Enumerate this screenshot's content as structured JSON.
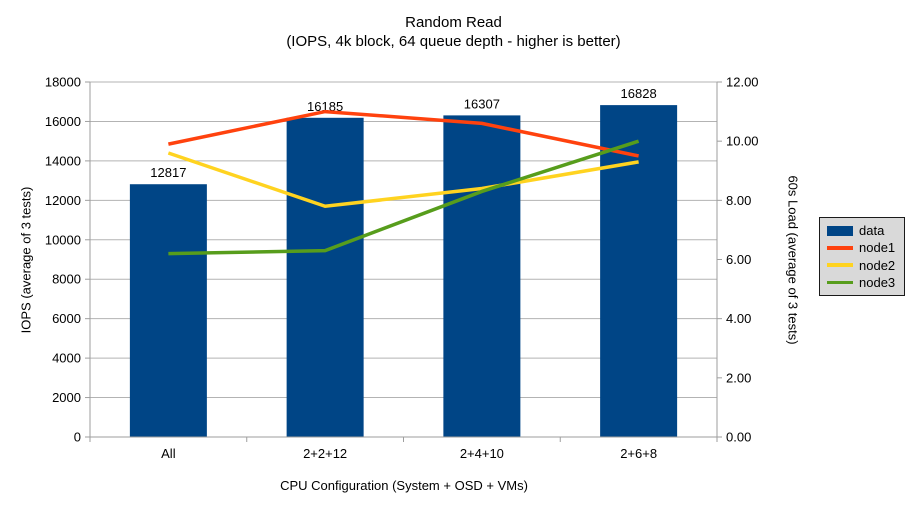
{
  "chart_data": {
    "type": "bar+line",
    "title": "Random Read",
    "subtitle": "(IOPS, 4k block, 64 queue depth - higher is better)",
    "categories": [
      "All",
      "2+2+12",
      "2+4+10",
      "2+6+8"
    ],
    "series": [
      {
        "name": "data",
        "type": "bar",
        "axis": "left",
        "color": "#004586",
        "values": [
          12817,
          16185,
          16307,
          16828
        ],
        "labels": [
          "12817",
          "16185",
          "16307",
          "16828"
        ]
      },
      {
        "name": "node1",
        "type": "line",
        "axis": "right",
        "color": "#FF420E",
        "values": [
          9.9,
          11.0,
          10.6,
          9.5
        ]
      },
      {
        "name": "node2",
        "type": "line",
        "axis": "right",
        "color": "#FFD320",
        "values": [
          9.6,
          7.8,
          8.4,
          9.3
        ]
      },
      {
        "name": "node3",
        "type": "line",
        "axis": "right",
        "color": "#579D1C",
        "values": [
          6.2,
          6.3,
          8.3,
          10.0
        ]
      }
    ],
    "xlabel": "CPU Configuration (System + OSD + VMs)",
    "ylabel_left": "IOPS (average of 3 tests)",
    "ylabel_right": "60s Load (average of 3 tests)",
    "ylim_left": [
      0,
      18000
    ],
    "ytick_step_left": 2000,
    "ylim_right": [
      0,
      12
    ],
    "ytick_step_right": 2,
    "right_tick_decimals": 2,
    "grid": true,
    "bar_value_labels": true,
    "legend_position": "right"
  },
  "colors": {
    "background": "#FFFFFF",
    "grid": "#B3B3B3",
    "axis": "#9E9E9E",
    "text": "#000000",
    "legend_bg": "#D9D9D9",
    "legend_border": "#1A1A1A"
  }
}
